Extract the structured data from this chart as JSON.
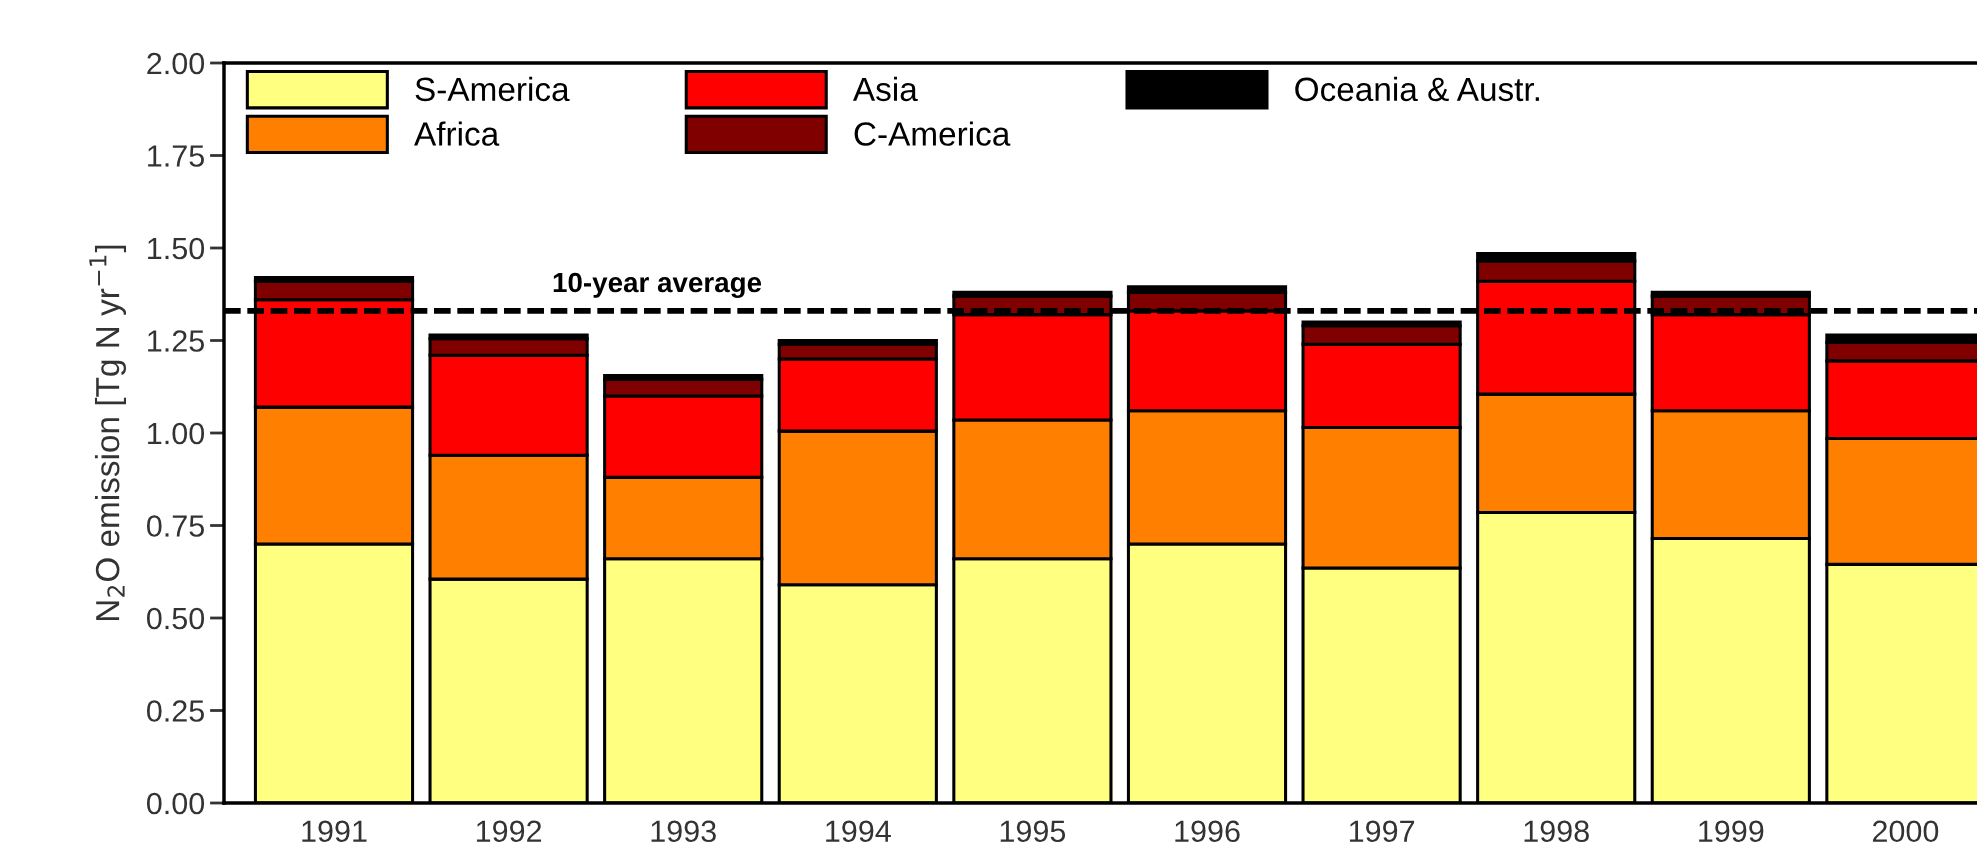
{
  "chart_data": {
    "type": "bar",
    "stacked": true,
    "ylabel": "N$_{2}$O emission [Tg N yr$^{−1}$]",
    "categories": [
      "1991",
      "1992",
      "1993",
      "1994",
      "1995",
      "1996",
      "1997",
      "1998",
      "1999",
      "2000"
    ],
    "series": [
      {
        "name": "S-America",
        "color": "#ffff80",
        "values": [
          0.7,
          0.605,
          0.66,
          0.59,
          0.66,
          0.7,
          0.635,
          0.785,
          0.715,
          0.645
        ]
      },
      {
        "name": "Africa",
        "color": "#ff8000",
        "values": [
          0.37,
          0.335,
          0.22,
          0.415,
          0.375,
          0.36,
          0.38,
          0.32,
          0.345,
          0.34
        ]
      },
      {
        "name": "Asia",
        "color": "#ff0000",
        "values": [
          0.29,
          0.27,
          0.22,
          0.195,
          0.285,
          0.27,
          0.225,
          0.305,
          0.26,
          0.21
        ]
      },
      {
        "name": "C-America",
        "color": "#800000",
        "values": [
          0.05,
          0.045,
          0.045,
          0.04,
          0.05,
          0.05,
          0.05,
          0.055,
          0.05,
          0.05
        ]
      },
      {
        "name": "Oceania & Austr.",
        "color": "#000000",
        "values": [
          0.01,
          0.01,
          0.01,
          0.01,
          0.01,
          0.015,
          0.01,
          0.02,
          0.01,
          0.02
        ]
      }
    ],
    "ylim": [
      0,
      2
    ],
    "yticks": [
      {
        "value": 0,
        "label": "0.00"
      },
      {
        "value": 0.25,
        "label": "0.25"
      },
      {
        "value": 0.5,
        "label": "0.50"
      },
      {
        "value": 0.75,
        "label": "0.75"
      },
      {
        "value": 1,
        "label": "1.00"
      },
      {
        "value": 1.25,
        "label": "1.25"
      },
      {
        "value": 1.5,
        "label": "1.50"
      },
      {
        "value": 1.75,
        "label": "1.75"
      },
      {
        "value": 2,
        "label": "2.00"
      }
    ],
    "ref_lines": [
      {
        "axis": "y",
        "value": 1.33,
        "label": "10-year average",
        "color": "#000000",
        "line_style": "dashed"
      }
    ],
    "legend": "top left",
    "grid": false
  }
}
